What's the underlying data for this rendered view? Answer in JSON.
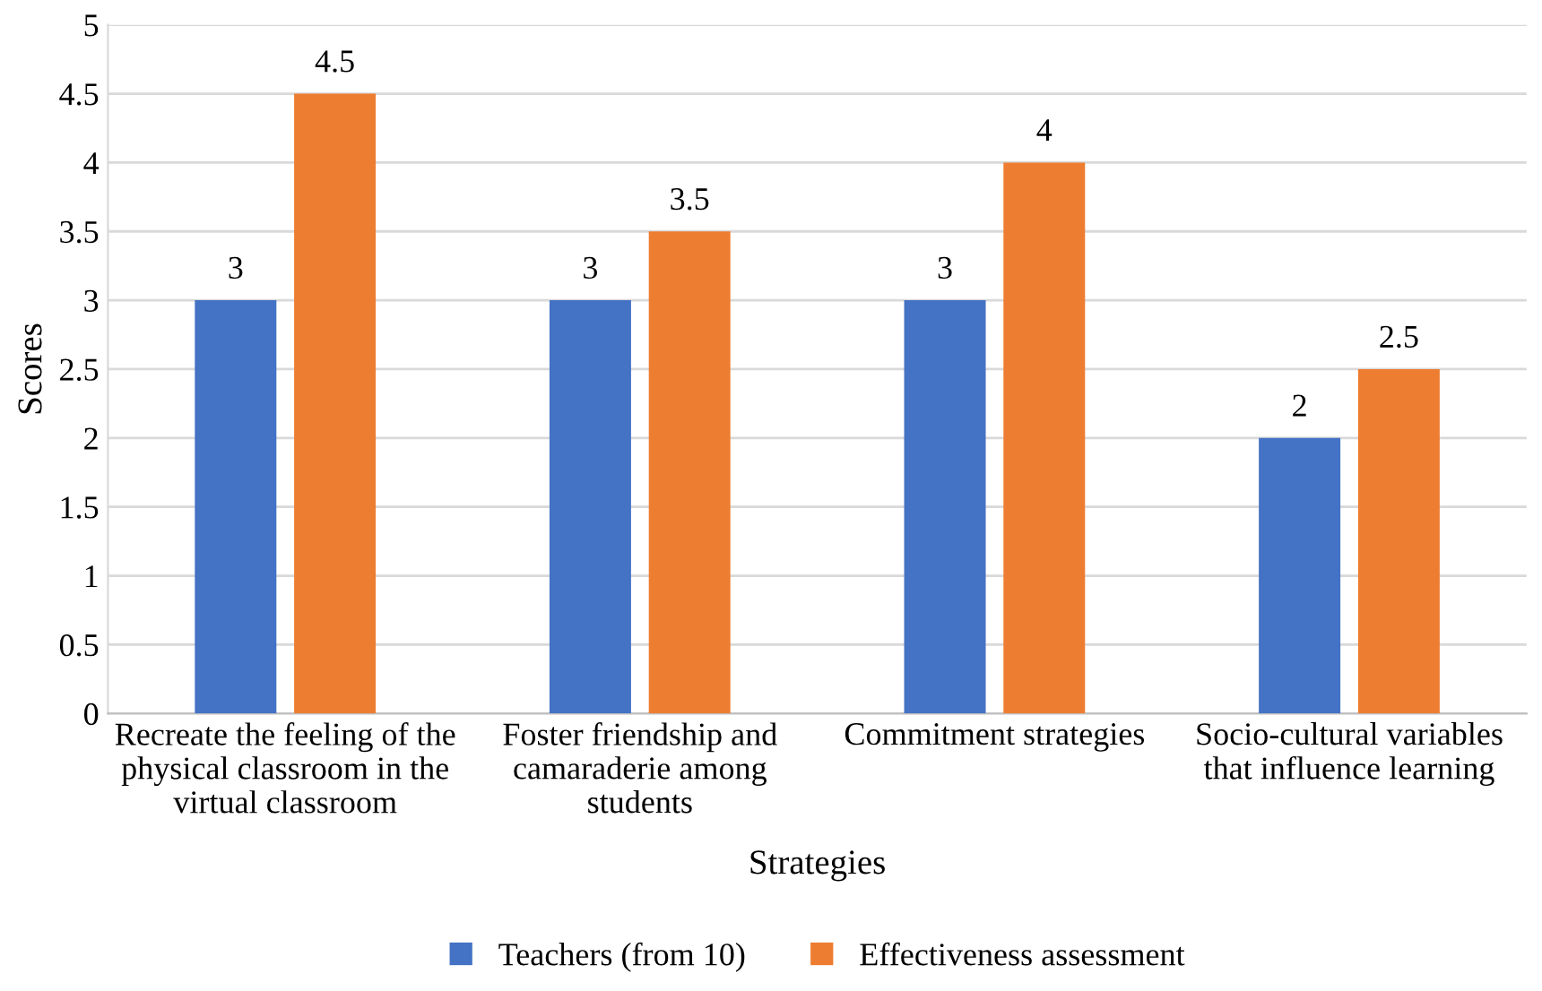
{
  "chart_data": {
    "type": "bar",
    "xlabel": "Strategies",
    "ylabel": "Scores",
    "categories": [
      "Recreate the feeling of the\nphysical classroom in the\nvirtual classroom",
      "Foster friendship and\ncamaraderie among\nstudents",
      "Commitment strategies",
      "Socio-cultural variables\nthat influence learning"
    ],
    "series": [
      {
        "name": "Teachers (from 10)",
        "color": "#4472c4",
        "values": [
          3,
          3,
          3,
          2
        ]
      },
      {
        "name": "Effectiveness assessment",
        "color": "#ed7d31",
        "values": [
          4.5,
          3.5,
          4,
          2.5
        ]
      }
    ],
    "ylim": [
      0,
      5
    ],
    "yticks": [
      0,
      0.5,
      1,
      1.5,
      2,
      2.5,
      3,
      3.5,
      4,
      4.5,
      5
    ],
    "grid": "y",
    "legend": "bottom",
    "data_labels": true
  }
}
